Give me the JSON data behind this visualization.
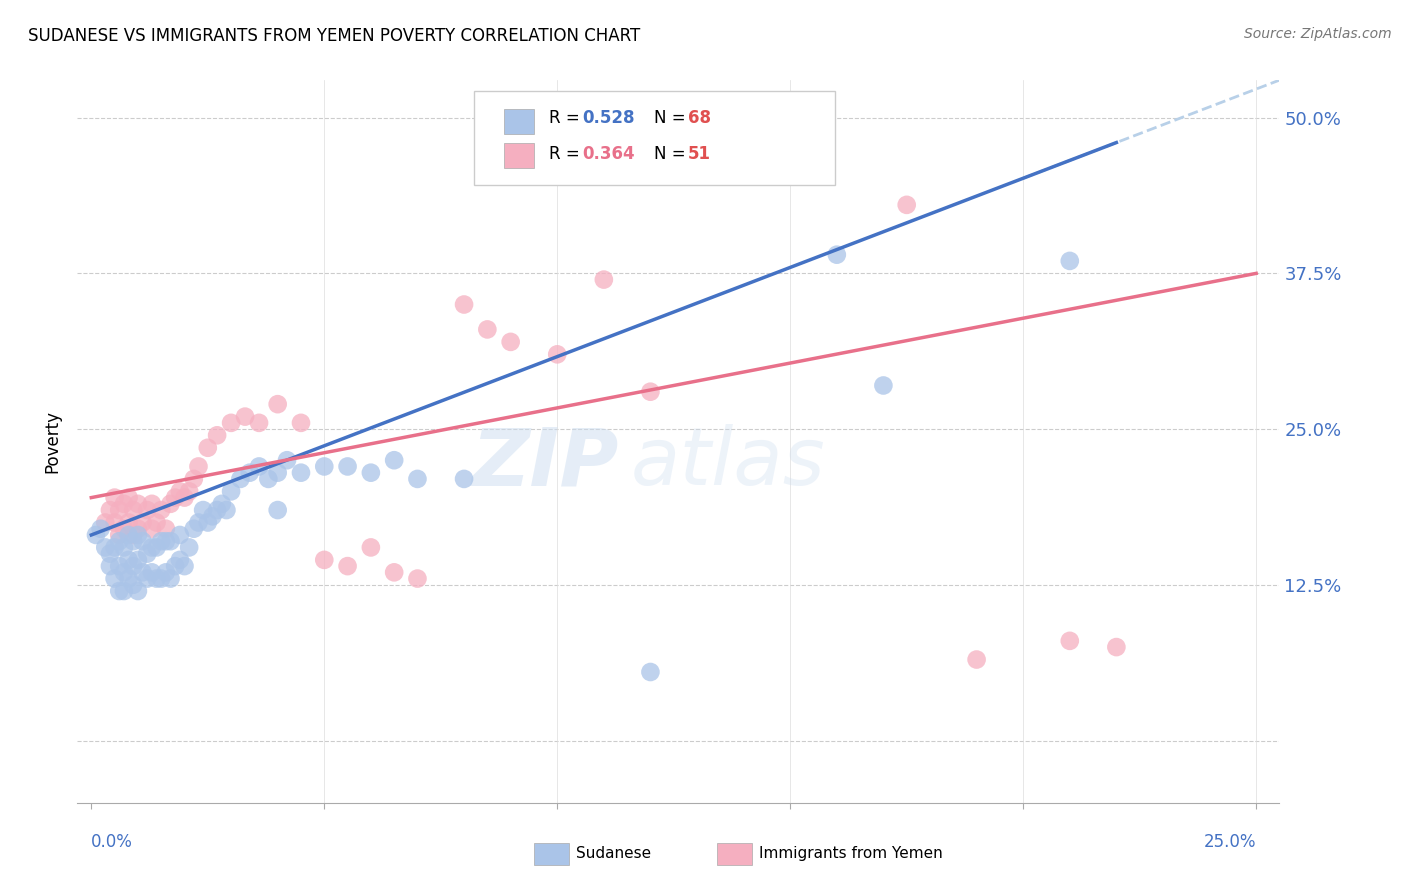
{
  "title": "SUDANESE VS IMMIGRANTS FROM YEMEN POVERTY CORRELATION CHART",
  "source": "Source: ZipAtlas.com",
  "ylabel": "Poverty",
  "y_ticks": [
    0.0,
    0.125,
    0.25,
    0.375,
    0.5
  ],
  "y_tick_labels": [
    "",
    "12.5%",
    "25.0%",
    "37.5%",
    "50.0%"
  ],
  "x_range": [
    0.0,
    0.25
  ],
  "y_range": [
    -0.05,
    0.53
  ],
  "legend_R1": "R = 0.528",
  "legend_N1": "N = 68",
  "legend_R2": "R = 0.364",
  "legend_N2": "N = 51",
  "blue_color": "#aac4e8",
  "pink_color": "#f5afc0",
  "blue_line_color": "#4472c4",
  "pink_line_color": "#e8708a",
  "dashed_line_color": "#b8d0e8",
  "watermark_zip": "ZIP",
  "watermark_atlas": "atlas",
  "sudanese_x": [
    0.001,
    0.002,
    0.003,
    0.004,
    0.004,
    0.005,
    0.005,
    0.006,
    0.006,
    0.006,
    0.007,
    0.007,
    0.007,
    0.008,
    0.008,
    0.008,
    0.009,
    0.009,
    0.009,
    0.01,
    0.01,
    0.01,
    0.011,
    0.011,
    0.012,
    0.012,
    0.013,
    0.013,
    0.014,
    0.014,
    0.015,
    0.015,
    0.016,
    0.016,
    0.017,
    0.017,
    0.018,
    0.019,
    0.019,
    0.02,
    0.021,
    0.022,
    0.023,
    0.024,
    0.025,
    0.026,
    0.027,
    0.028,
    0.029,
    0.03,
    0.032,
    0.034,
    0.036,
    0.038,
    0.04,
    0.042,
    0.045,
    0.05,
    0.055,
    0.06,
    0.065,
    0.07,
    0.12,
    0.16,
    0.17,
    0.21,
    0.04,
    0.08
  ],
  "sudanese_y": [
    0.165,
    0.17,
    0.155,
    0.14,
    0.15,
    0.13,
    0.155,
    0.12,
    0.14,
    0.16,
    0.12,
    0.135,
    0.155,
    0.13,
    0.145,
    0.165,
    0.125,
    0.14,
    0.16,
    0.12,
    0.145,
    0.165,
    0.135,
    0.16,
    0.13,
    0.15,
    0.135,
    0.155,
    0.13,
    0.155,
    0.13,
    0.16,
    0.135,
    0.16,
    0.13,
    0.16,
    0.14,
    0.145,
    0.165,
    0.14,
    0.155,
    0.17,
    0.175,
    0.185,
    0.175,
    0.18,
    0.185,
    0.19,
    0.185,
    0.2,
    0.21,
    0.215,
    0.22,
    0.21,
    0.215,
    0.225,
    0.215,
    0.22,
    0.22,
    0.215,
    0.225,
    0.21,
    0.055,
    0.39,
    0.285,
    0.385,
    0.185,
    0.21
  ],
  "yemen_x": [
    0.003,
    0.004,
    0.005,
    0.005,
    0.006,
    0.006,
    0.007,
    0.007,
    0.008,
    0.008,
    0.009,
    0.009,
    0.01,
    0.01,
    0.011,
    0.012,
    0.013,
    0.013,
    0.014,
    0.015,
    0.016,
    0.017,
    0.018,
    0.019,
    0.02,
    0.021,
    0.022,
    0.023,
    0.025,
    0.027,
    0.03,
    0.033,
    0.036,
    0.04,
    0.045,
    0.05,
    0.055,
    0.06,
    0.065,
    0.07,
    0.08,
    0.085,
    0.09,
    0.1,
    0.11,
    0.12,
    0.15,
    0.175,
    0.19,
    0.21,
    0.22
  ],
  "yemen_y": [
    0.175,
    0.185,
    0.175,
    0.195,
    0.165,
    0.185,
    0.17,
    0.19,
    0.175,
    0.195,
    0.165,
    0.185,
    0.17,
    0.19,
    0.175,
    0.185,
    0.17,
    0.19,
    0.175,
    0.185,
    0.17,
    0.19,
    0.195,
    0.2,
    0.195,
    0.2,
    0.21,
    0.22,
    0.235,
    0.245,
    0.255,
    0.26,
    0.255,
    0.27,
    0.255,
    0.145,
    0.14,
    0.155,
    0.135,
    0.13,
    0.35,
    0.33,
    0.32,
    0.31,
    0.37,
    0.28,
    0.46,
    0.43,
    0.065,
    0.08,
    0.075
  ],
  "blue_line_x": [
    0.0,
    0.22
  ],
  "blue_line_y": [
    0.165,
    0.48
  ],
  "pink_line_x": [
    0.0,
    0.25
  ],
  "pink_line_y": [
    0.195,
    0.375
  ]
}
